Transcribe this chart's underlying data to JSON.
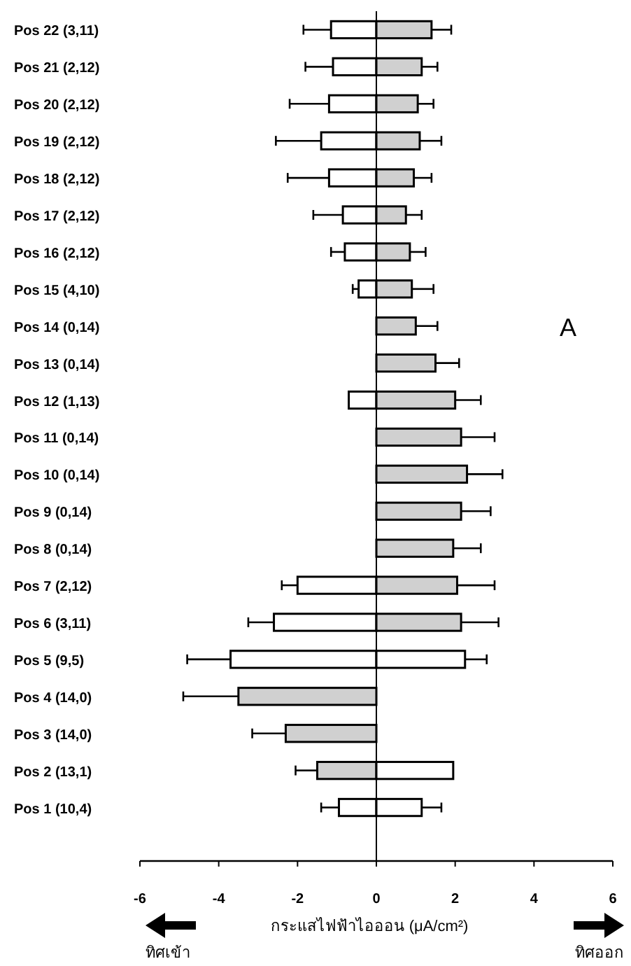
{
  "chart_data": {
    "type": "bar",
    "orientation": "horizontal",
    "stacked": true,
    "categories": [
      "Pos 22 (3,11)",
      "Pos 21 (2,12)",
      "Pos 20 (2,12)",
      "Pos 19 (2,12)",
      "Pos 18 (2,12)",
      "Pos 17 (2,12)",
      "Pos 16 (2,12)",
      "Pos 15 (4,10)",
      "Pos 14 (0,14)",
      "Pos 13 (0,14)",
      "Pos 12 (1,13)",
      "Pos 11 (0,14)",
      "Pos 10 (0,14)",
      "Pos 9 (0,14)",
      "Pos 8 (0,14)",
      "Pos 7 (2,12)",
      "Pos 6 (3,11)",
      "Pos 5 (9,5)",
      "Pos 4 (14,0)",
      "Pos 3 (14,0)",
      "Pos 2 (13,1)",
      "Pos 1 (10,4)"
    ],
    "series": [
      {
        "values": [
          -1.15,
          -1.1,
          -1.2,
          -1.4,
          -1.2,
          -0.85,
          -0.8,
          -0.45,
          null,
          null,
          -0.7,
          null,
          null,
          null,
          null,
          -2.0,
          -2.6,
          -3.7,
          -3.5,
          -2.3,
          -1.5,
          -0.95
        ],
        "colors": [
          "#ffffff",
          "#ffffff",
          "#ffffff",
          "#ffffff",
          "#ffffff",
          "#ffffff",
          "#ffffff",
          "#ffffff",
          null,
          null,
          "#ffffff",
          null,
          null,
          null,
          null,
          "#ffffff",
          "#ffffff",
          "#ffffff",
          "#d0d0d0",
          "#d0d0d0",
          "#d0d0d0",
          "#ffffff"
        ],
        "errors": [
          [
            -1.85,
            -1.15
          ],
          [
            -1.8,
            -1.1
          ],
          [
            -2.2,
            -1.2
          ],
          [
            -2.55,
            -1.4
          ],
          [
            -2.25,
            -1.2
          ],
          [
            -1.6,
            -0.85
          ],
          [
            -1.15,
            -0.8
          ],
          [
            -0.6,
            -0.45
          ],
          null,
          null,
          null,
          null,
          null,
          null,
          null,
          [
            -2.4,
            -2.0
          ],
          [
            -3.25,
            -2.6
          ],
          [
            -4.8,
            -3.7
          ],
          [
            -4.9,
            -3.5
          ],
          [
            -3.15,
            -2.3
          ],
          [
            -2.05,
            -1.5
          ],
          [
            -1.4,
            -0.95
          ]
        ]
      },
      {
        "values": [
          1.4,
          1.15,
          1.05,
          1.1,
          0.95,
          0.75,
          0.85,
          0.9,
          1.0,
          1.5,
          2.0,
          2.15,
          2.3,
          2.15,
          1.95,
          2.05,
          2.15,
          2.25,
          null,
          null,
          1.95,
          1.15
        ],
        "colors": [
          "#d0d0d0",
          "#d0d0d0",
          "#d0d0d0",
          "#d0d0d0",
          "#d0d0d0",
          "#d0d0d0",
          "#d0d0d0",
          "#d0d0d0",
          "#d0d0d0",
          "#d0d0d0",
          "#d0d0d0",
          "#d0d0d0",
          "#d0d0d0",
          "#d0d0d0",
          "#d0d0d0",
          "#d0d0d0",
          "#d0d0d0",
          "#ffffff",
          null,
          null,
          "#ffffff",
          "#ffffff"
        ],
        "errors": [
          [
            1.4,
            1.9
          ],
          [
            1.15,
            1.55
          ],
          [
            1.05,
            1.45
          ],
          [
            1.1,
            1.65
          ],
          [
            0.95,
            1.4
          ],
          [
            0.75,
            1.15
          ],
          [
            0.85,
            1.25
          ],
          [
            0.9,
            1.45
          ],
          [
            1.0,
            1.55
          ],
          [
            1.5,
            2.1
          ],
          [
            2.0,
            2.65
          ],
          [
            2.15,
            3.0
          ],
          [
            2.3,
            3.2
          ],
          [
            2.15,
            2.9
          ],
          [
            1.95,
            2.65
          ],
          [
            2.05,
            3.0
          ],
          [
            2.15,
            3.1
          ],
          [
            2.25,
            2.8
          ],
          null,
          null,
          null,
          [
            1.15,
            1.65
          ]
        ]
      }
    ],
    "xlim": [
      -6,
      6
    ],
    "xticks": [
      -6,
      -4,
      -2,
      0,
      2,
      4,
      6
    ],
    "xlabel": "กระแสไฟฟ้าไอออน (μA/cm²)",
    "ref_lines": [
      {
        "axis": "x",
        "value": 0
      }
    ],
    "annotations": [
      "A",
      "ทิศเข้า",
      "ทิศออก"
    ]
  }
}
